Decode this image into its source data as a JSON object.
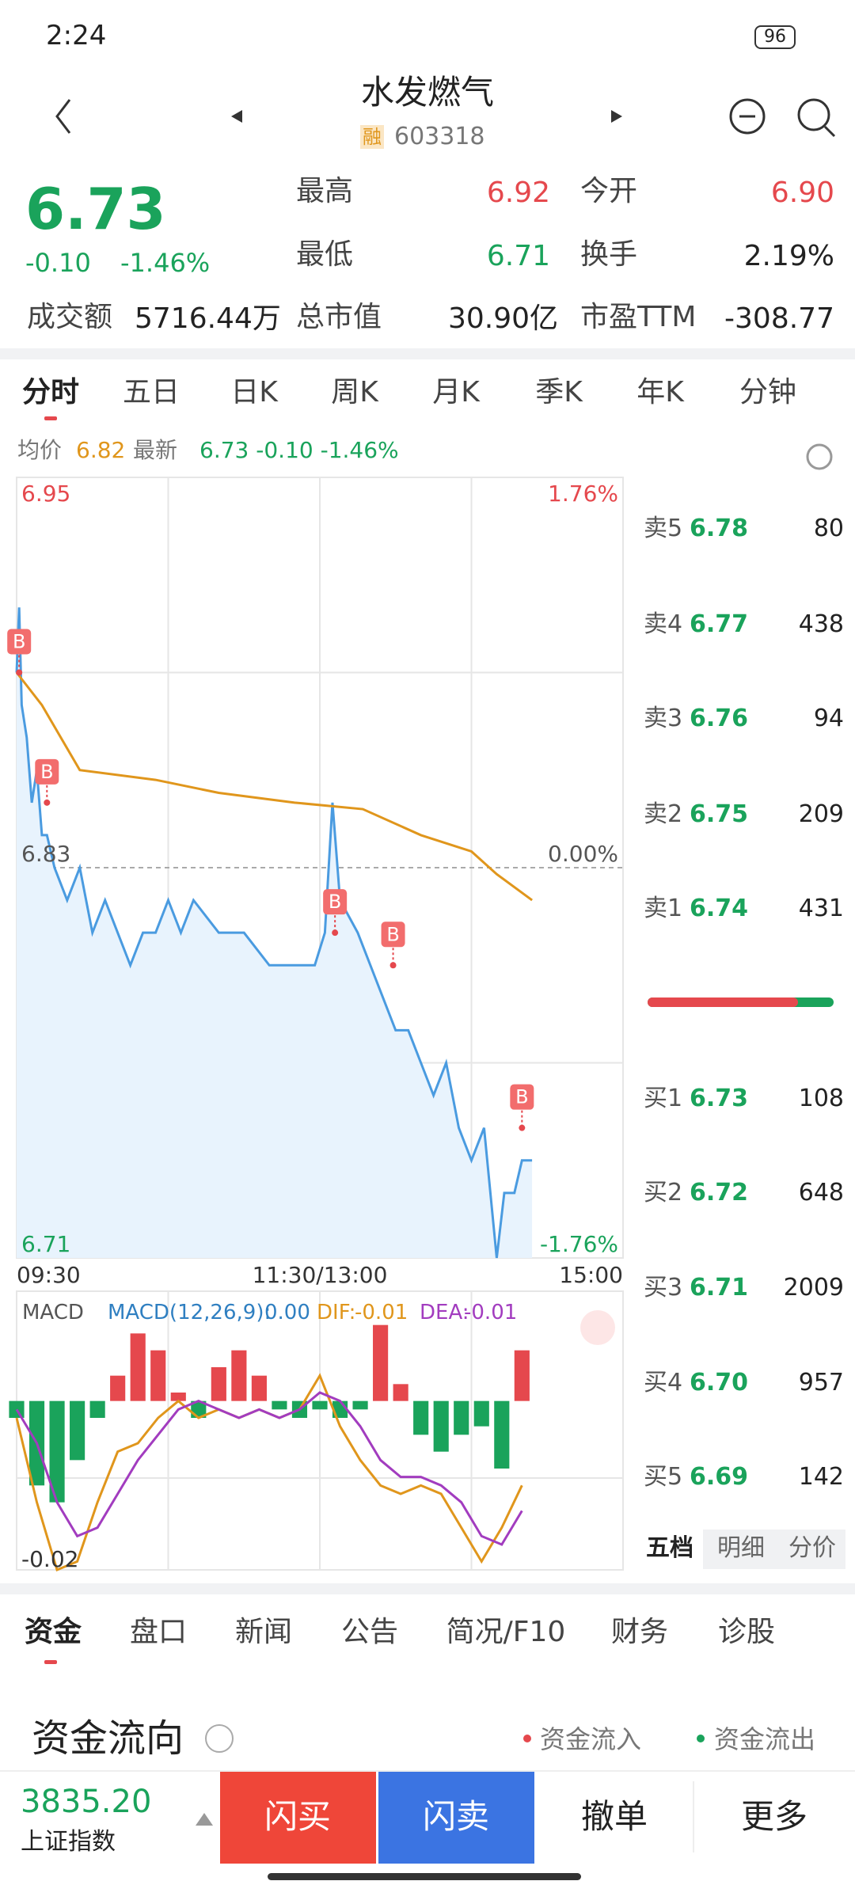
{
  "status": {
    "time": "2:24",
    "battery": "96"
  },
  "header": {
    "title": "水发燃气",
    "tag": "融",
    "code": "603318"
  },
  "quote": {
    "price": "6.73",
    "change": "-0.10",
    "change_pct": "-1.46%",
    "stats": [
      [
        "最高",
        "6.92"
      ],
      [
        "今开",
        "6.90"
      ],
      [
        "最低",
        "6.71"
      ],
      [
        "换手",
        "2.19%"
      ],
      [
        "成交额",
        "5716.44万"
      ],
      [
        "总市值",
        "30.90亿"
      ],
      [
        "市盈TTM",
        "-308.77"
      ]
    ]
  },
  "period_tabs": [
    "分时",
    "五日",
    "日K",
    "周K",
    "月K",
    "季K",
    "年K",
    "分钟"
  ],
  "legend": {
    "avg_label": "均价",
    "avg": "6.82",
    "last_label": "最新",
    "last": "6.73 -0.10 -1.46%"
  },
  "intraday": {
    "type": "line",
    "ylim": [
      6.71,
      6.95
    ],
    "prev_close": 6.83,
    "xlim": [
      0,
      240
    ],
    "right_labels": [
      "1.76%",
      "0.00%",
      "-1.76%"
    ],
    "xticks": [
      {
        "value": 0,
        "label": "09:30"
      },
      {
        "value": 120,
        "label": "11:30/13:00"
      },
      {
        "value": 240,
        "label": "15:00"
      }
    ],
    "price": {
      "name": "最新",
      "color": "#4a9be0",
      "x": [
        0,
        1,
        2,
        4,
        6,
        8,
        10,
        12,
        15,
        20,
        25,
        30,
        35,
        40,
        45,
        50,
        55,
        60,
        65,
        70,
        80,
        90,
        100,
        110,
        118,
        122,
        125,
        128,
        135,
        140,
        145,
        150,
        155,
        160,
        165,
        170,
        175,
        180,
        185,
        190,
        193,
        197,
        200,
        204
      ],
      "values": [
        6.89,
        6.91,
        6.88,
        6.87,
        6.85,
        6.86,
        6.84,
        6.84,
        6.83,
        6.82,
        6.83,
        6.81,
        6.82,
        6.81,
        6.8,
        6.81,
        6.81,
        6.82,
        6.81,
        6.82,
        6.81,
        6.81,
        6.8,
        6.8,
        6.8,
        6.81,
        6.85,
        6.82,
        6.81,
        6.8,
        6.79,
        6.78,
        6.78,
        6.77,
        6.76,
        6.77,
        6.75,
        6.74,
        6.75,
        6.71,
        6.73,
        6.73,
        6.74,
        6.74
      ]
    },
    "avg": {
      "name": "均价",
      "color": "#e0961c",
      "x": [
        0,
        10,
        25,
        55,
        80,
        110,
        137,
        160,
        180,
        190,
        204
      ],
      "values": [
        6.89,
        6.88,
        6.86,
        6.857,
        6.853,
        6.85,
        6.848,
        6.84,
        6.835,
        6.828,
        6.82
      ]
    },
    "markers": [
      {
        "label": "B",
        "x": 1,
        "y": 6.89
      },
      {
        "label": "B",
        "x": 12,
        "y": 6.85
      },
      {
        "label": "B",
        "x": 126,
        "y": 6.81
      },
      {
        "label": "B",
        "x": 149,
        "y": 6.8
      },
      {
        "label": "B",
        "x": 200,
        "y": 6.75
      }
    ]
  },
  "macd": {
    "type": "bar",
    "title": "MACD",
    "params": "MACD(12,26,9):",
    "macd": "0.00",
    "dif_label": "DIF:",
    "dif": "-0.01",
    "dea_label": "DEA:",
    "dea": "-0.01",
    "ylim": [
      -0.02,
      0.013
    ],
    "x": [
      0,
      8,
      16,
      24,
      32,
      40,
      48,
      56,
      64,
      72,
      80,
      88,
      96,
      104,
      112,
      120,
      128,
      136,
      144,
      152,
      160,
      168,
      176,
      184,
      192,
      200
    ],
    "bars": [
      -0.002,
      -0.01,
      -0.012,
      -0.007,
      -0.002,
      0.003,
      0.008,
      0.006,
      0.001,
      -0.002,
      0.004,
      0.006,
      0.003,
      -0.001,
      -0.002,
      -0.001,
      -0.002,
      -0.001,
      0.009,
      0.002,
      -0.004,
      -0.006,
      -0.004,
      -0.003,
      -0.008,
      0.006
    ],
    "dif_values": [
      -0.002,
      -0.012,
      -0.02,
      -0.019,
      -0.012,
      -0.006,
      -0.005,
      -0.002,
      0,
      -0.002,
      -0.001,
      -0.002,
      -0.001,
      -0.002,
      -0.001,
      0.003,
      -0.003,
      -0.007,
      -0.01,
      -0.011,
      -0.01,
      -0.011,
      -0.015,
      -0.019,
      -0.015,
      -0.01
    ],
    "dea_values": [
      -0.001,
      -0.005,
      -0.012,
      -0.016,
      -0.015,
      -0.011,
      -0.007,
      -0.004,
      -0.001,
      0,
      -0.001,
      -0.002,
      -0.001,
      -0.002,
      -0.001,
      0.001,
      0,
      -0.003,
      -0.007,
      -0.009,
      -0.009,
      -0.01,
      -0.012,
      -0.016,
      -0.017,
      -0.013
    ]
  },
  "order_book": {
    "asks": [
      [
        "卖5",
        "6.78",
        "80"
      ],
      [
        "卖4",
        "6.77",
        "438"
      ],
      [
        "卖3",
        "6.76",
        "94"
      ],
      [
        "卖2",
        "6.75",
        "209"
      ],
      [
        "卖1",
        "6.74",
        "431"
      ]
    ],
    "bids": [
      [
        "买1",
        "6.73",
        "108"
      ],
      [
        "买2",
        "6.72",
        "648"
      ],
      [
        "买3",
        "6.71",
        "2009"
      ],
      [
        "买4",
        "6.70",
        "957"
      ],
      [
        "买5",
        "6.69",
        "142"
      ]
    ],
    "tabs": [
      "五档",
      "明细",
      "分价"
    ]
  },
  "info_tabs": [
    "资金",
    "盘口",
    "新闻",
    "公告",
    "简况/F10",
    "财务",
    "诊股"
  ],
  "fund_flow": {
    "title": "资金流向",
    "inflow": "资金流入",
    "outflow": "资金流出"
  },
  "bottom_bar": {
    "index_value": "3835.20",
    "index_name": "上证指数",
    "buy": "闪买",
    "sell": "闪卖",
    "cancel": "撤单",
    "more": "更多"
  }
}
